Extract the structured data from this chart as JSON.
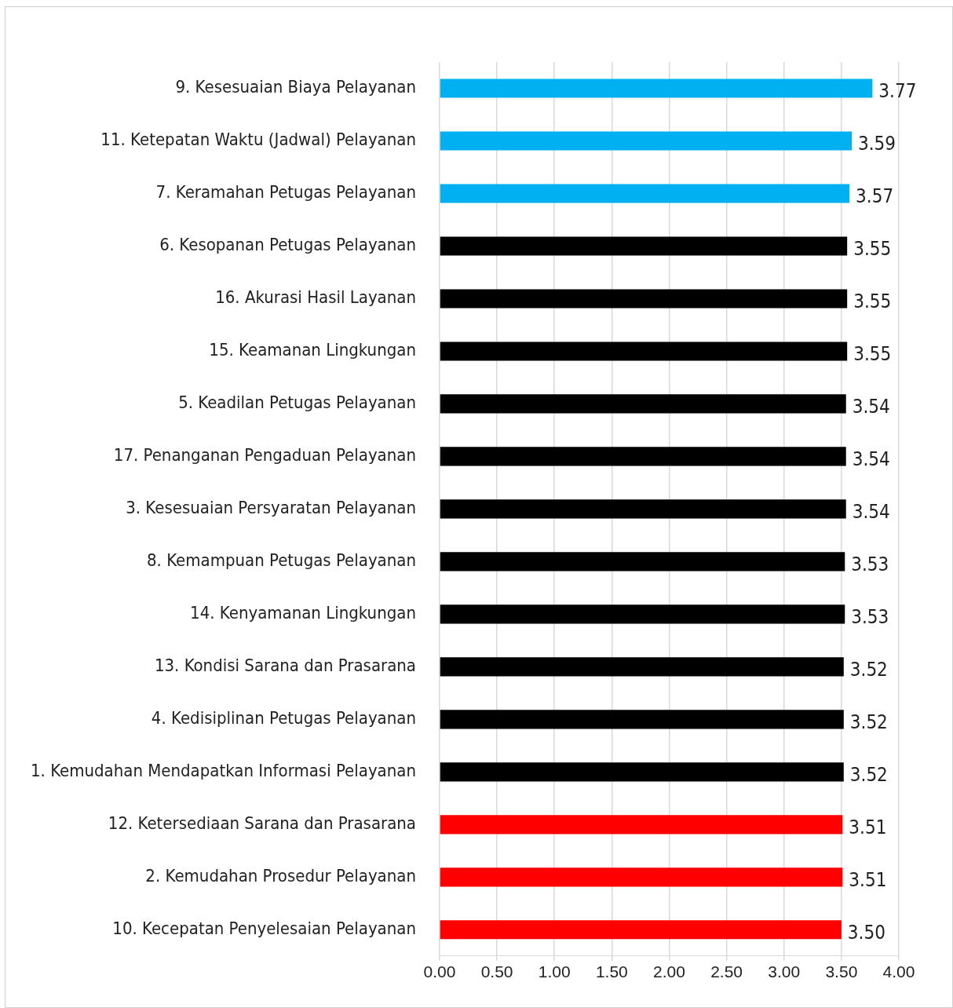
{
  "chart_data": {
    "type": "bar",
    "orientation": "horizontal",
    "categories": [
      "9. Kesesuaian Biaya Pelayanan",
      "11. Ketepatan Waktu (Jadwal) Pelayanan",
      "7. Keramahan Petugas Pelayanan",
      "6. Kesopanan Petugas Pelayanan",
      "16. Akurasi Hasil Layanan",
      "15. Keamanan Lingkungan",
      "5. Keadilan Petugas Pelayanan",
      "17. Penanganan Pengaduan Pelayanan",
      "3. Kesesuaian Persyaratan Pelayanan",
      "8. Kemampuan Petugas Pelayanan",
      "14. Kenyamanan Lingkungan",
      "13. Kondisi Sarana dan Prasarana",
      "4. Kedisiplinan Petugas Pelayanan",
      "1. Kemudahan Mendapatkan Informasi Pelayanan",
      "12. Ketersediaan Sarana dan Prasarana",
      "2. Kemudahan Prosedur Pelayanan",
      "10. Kecepatan Penyelesaian Pelayanan"
    ],
    "values": [
      3.77,
      3.59,
      3.57,
      3.55,
      3.55,
      3.55,
      3.54,
      3.54,
      3.54,
      3.53,
      3.53,
      3.52,
      3.52,
      3.52,
      3.51,
      3.51,
      3.5
    ],
    "colors": [
      "#00b0f0",
      "#00b0f0",
      "#00b0f0",
      "#000000",
      "#000000",
      "#000000",
      "#000000",
      "#000000",
      "#000000",
      "#000000",
      "#000000",
      "#000000",
      "#000000",
      "#000000",
      "#ff0000",
      "#ff0000",
      "#ff0000"
    ],
    "xlim": [
      0,
      4
    ],
    "xticks": [
      {
        "value": 0,
        "label": "0.00"
      },
      {
        "value": 0.5,
        "label": "0.50"
      },
      {
        "value": 1,
        "label": "1.00"
      },
      {
        "value": 1.5,
        "label": "1.50"
      },
      {
        "value": 2,
        "label": "2.00"
      },
      {
        "value": 2.5,
        "label": "2.50"
      },
      {
        "value": 3,
        "label": "3.00"
      },
      {
        "value": 3.5,
        "label": "3.50"
      },
      {
        "value": 4,
        "label": "4.00"
      }
    ],
    "value_labels": [
      "3.77",
      "3.59",
      "3.57",
      "3.55",
      "3.55",
      "3.55",
      "3.54",
      "3.54",
      "3.54",
      "3.53",
      "3.53",
      "3.52",
      "3.52",
      "3.52",
      "3.51",
      "3.51",
      "3.50"
    ],
    "grid": "x"
  }
}
